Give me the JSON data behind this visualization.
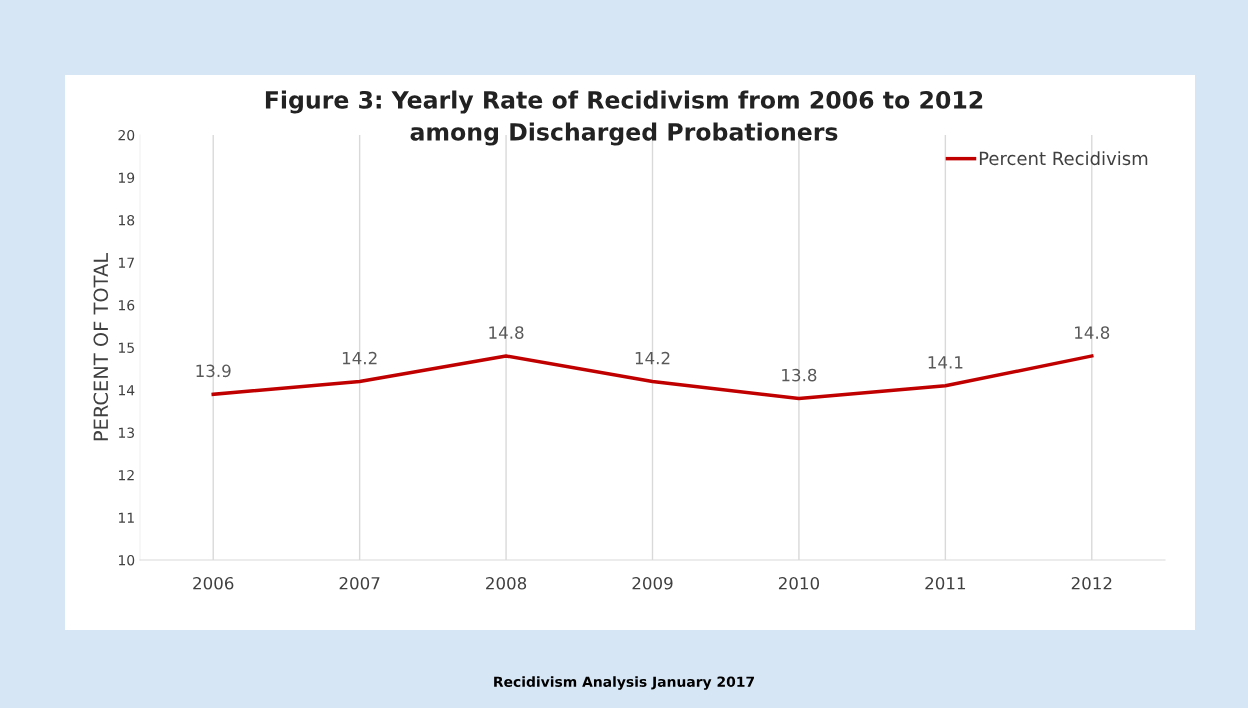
{
  "chart_data": {
    "type": "line",
    "title": "Figure 3: Yearly Rate of Recidivism from 2006 to 2012\namong Discharged Probationers",
    "ylabel": "PERCENT OF TOTAL",
    "categories": [
      "2006",
      "2007",
      "2008",
      "2009",
      "2010",
      "2011",
      "2012"
    ],
    "series": [
      {
        "name": "Percent Recidivism",
        "color": "#c00000",
        "values": [
          13.9,
          14.2,
          14.8,
          14.2,
          13.8,
          14.1,
          14.8
        ]
      }
    ],
    "ylim": [
      10,
      20
    ],
    "yticks": [
      10,
      11,
      12,
      13,
      14,
      15,
      16,
      17,
      18,
      19,
      20
    ],
    "grid": "x",
    "legend": "top right",
    "data_labels": true,
    "marker": "none",
    "line_style": "solid",
    "annotations": [
      "Recidivism Analysis January 2017"
    ]
  }
}
